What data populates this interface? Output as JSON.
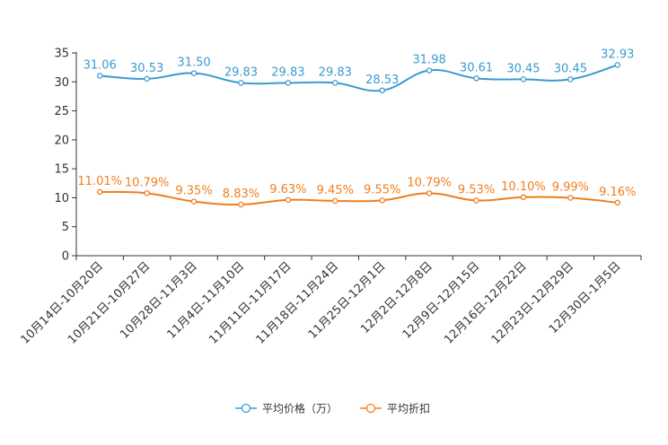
{
  "chart_data": {
    "type": "line",
    "categories": [
      "10月14日-10月20日",
      "10月21日-10月27日",
      "10月28日-11月3日",
      "11月4日-11月10日",
      "11月11日-11月17日",
      "11月18日-11月24日",
      "11月25日-12月1日",
      "12月2日-12月8日",
      "12月9日-12月15日",
      "12月16日-12月22日",
      "12月23日-12月29日",
      "12月30日-1月5日"
    ],
    "series": [
      {
        "name": "平均价格（万）",
        "color": "#3a9bcf",
        "values": [
          31.06,
          30.53,
          31.5,
          29.83,
          29.83,
          29.83,
          28.53,
          31.98,
          30.61,
          30.45,
          30.45,
          32.93
        ],
        "labels": [
          "31.06",
          "30.53",
          "31.50",
          "29.83",
          "29.83",
          "29.83",
          "28.53",
          "31.98",
          "30.61",
          "30.45",
          "30.45",
          "32.93"
        ]
      },
      {
        "name": "平均折扣",
        "color": "#f07e1f",
        "values": [
          11.01,
          10.79,
          9.35,
          8.83,
          9.63,
          9.45,
          9.55,
          10.79,
          9.53,
          10.1,
          9.99,
          9.16
        ],
        "labels": [
          "11.01%",
          "10.79%",
          "9.35%",
          "8.83%",
          "9.63%",
          "9.45%",
          "9.55%",
          "10.79%",
          "9.53%",
          "10.10%",
          "9.99%",
          "9.16%"
        ]
      }
    ],
    "ylim": [
      0,
      35
    ],
    "yticks": [
      "0",
      "5",
      "10",
      "15",
      "20",
      "25",
      "30",
      "35"
    ],
    "title": "",
    "xlabel": "",
    "ylabel": "",
    "grid": false,
    "legend_position": "bottom-center"
  }
}
